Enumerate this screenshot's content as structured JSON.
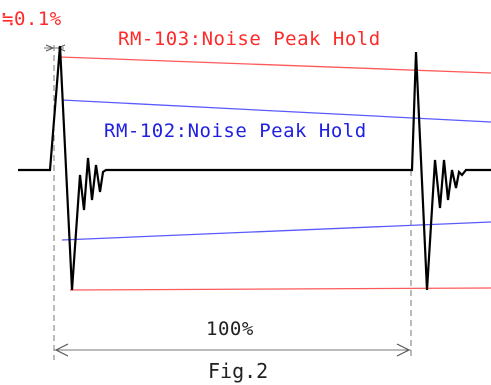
{
  "labels": {
    "pulse_width": "≒0.1%",
    "red_line": "RM-103:Noise Peak Hold",
    "blue_line": "RM-102:Noise Peak Hold",
    "period": "100%",
    "figure": "Fig.2"
  },
  "colors": {
    "red_hold": "#ff5a5a",
    "blue_hold": "#5a5aff",
    "red_text": "#ff2a2a",
    "blue_text": "#2020e0",
    "signal": "#000000",
    "dimension": "#777777"
  }
}
